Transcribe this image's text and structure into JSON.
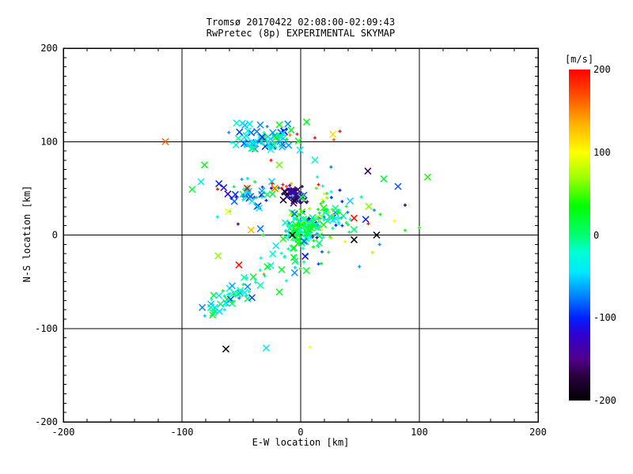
{
  "title": {
    "line1": "Tromsø 20170422 02:08:00-02:09:43",
    "line2": "RwPretec (8p) EXPERIMENTAL SKYMAP"
  },
  "colorbar": {
    "label": "[m/s]",
    "ticks": [
      200,
      100,
      0,
      -100,
      -200
    ],
    "min": -200,
    "max": 200,
    "stops": [
      [
        -200,
        "#000000"
      ],
      [
        -170,
        "#2a0040"
      ],
      [
        -150,
        "#50008c"
      ],
      [
        -120,
        "#3000d0"
      ],
      [
        -100,
        "#0020ff"
      ],
      [
        -70,
        "#0090ff"
      ],
      [
        -45,
        "#00e8ff"
      ],
      [
        -20,
        "#00ffd0"
      ],
      [
        0,
        "#00ff70"
      ],
      [
        35,
        "#00ff00"
      ],
      [
        70,
        "#a0ff00"
      ],
      [
        100,
        "#ffff00"
      ],
      [
        135,
        "#ffb000"
      ],
      [
        165,
        "#ff5800"
      ],
      [
        200,
        "#ff0000"
      ]
    ]
  },
  "chart_data": {
    "type": "scatter",
    "xlabel": "E-W location [km]",
    "ylabel": "N-S location [km]",
    "xlim": [
      -200,
      200
    ],
    "ylim": [
      -200,
      200
    ],
    "x_ticks": [
      -200,
      -100,
      0,
      100,
      200
    ],
    "y_ticks": [
      -200,
      -100,
      0,
      100,
      200
    ],
    "x_minor_step": 20,
    "y_minor_step": 10,
    "grid_lines_x": [
      -100,
      0,
      100
    ],
    "grid_lines_y": [
      -100,
      0,
      100
    ],
    "value_unit": "m/s",
    "marker_types": {
      "x": "large X marker",
      "p": "small plus marker"
    },
    "seed": 20170422,
    "clusters": [
      {
        "name": "top-band",
        "cx": -32,
        "cy": 100,
        "sx": 13,
        "sy": 6,
        "n": 65,
        "v_mean": -35,
        "v_sd": 35,
        "x_frac": 0.6
      },
      {
        "name": "upper-sparse",
        "cx": -35,
        "cy": 110,
        "sx": 20,
        "sy": 8,
        "n": 14,
        "v_mean": -45,
        "v_sd": 30,
        "x_frac": 0.8
      },
      {
        "name": "mid-left",
        "cx": -43,
        "cy": 42,
        "sx": 9,
        "sy": 9,
        "n": 38,
        "v_mean": -75,
        "v_sd": 45,
        "x_frac": 0.45
      },
      {
        "name": "dark-core",
        "cx": -6,
        "cy": 44,
        "sx": 5,
        "sy": 4,
        "n": 40,
        "v_mean": -150,
        "v_sd": 25,
        "x_frac": 0.75
      },
      {
        "name": "origin-dense",
        "cx": 2,
        "cy": 7,
        "sx": 7,
        "sy": 7,
        "n": 115,
        "v_mean": 5,
        "v_sd": 30,
        "x_frac": 0.35
      },
      {
        "name": "right-mid",
        "cx": 22,
        "cy": 22,
        "sx": 12,
        "sy": 13,
        "n": 85,
        "v_mean": -5,
        "v_sd": 65,
        "x_frac": 0.25
      },
      {
        "name": "sw-trail",
        "type": "trail",
        "from": [
          -78,
          -82
        ],
        "to": [
          -33,
          -44
        ],
        "width": 5,
        "n": 55,
        "v_mean": -25,
        "v_sd": 30,
        "x_frac": 0.5
      },
      {
        "name": "below-origin",
        "cx": -5,
        "cy": -22,
        "sx": 14,
        "sy": 12,
        "n": 28,
        "v_mean": 5,
        "v_sd": 30,
        "x_frac": 0.3
      },
      {
        "name": "sparse-field",
        "cx": -10,
        "cy": 30,
        "sx": 45,
        "sy": 35,
        "n": 40,
        "v_mean": -10,
        "v_sd": 70,
        "x_frac": 0.4
      }
    ],
    "points": [
      [
        -63,
        -122,
        -200,
        "x"
      ],
      [
        -29,
        -121,
        -45,
        "x"
      ],
      [
        8,
        -120,
        100,
        "p"
      ],
      [
        -7,
        0,
        -200,
        "x"
      ],
      [
        45,
        -5,
        -200,
        "x"
      ],
      [
        64,
        0,
        -200,
        "x"
      ],
      [
        -13,
        46,
        -200,
        "x"
      ],
      [
        -84,
        57,
        -40,
        "x"
      ],
      [
        -114,
        100,
        160,
        "x"
      ],
      [
        -81,
        75,
        30,
        "x"
      ],
      [
        107,
        62,
        40,
        "x"
      ],
      [
        82,
        52,
        -85,
        "x"
      ],
      [
        88,
        32,
        -160,
        "p"
      ],
      [
        -18,
        118,
        30,
        "x"
      ],
      [
        5,
        121,
        25,
        "x"
      ],
      [
        -43,
        119,
        -40,
        "x"
      ],
      [
        45,
        18,
        195,
        "x"
      ],
      [
        -45,
        50,
        195,
        "x"
      ],
      [
        -52,
        -32,
        195,
        "x"
      ],
      [
        -31,
        -42,
        150,
        "p"
      ],
      [
        12,
        104,
        195,
        "p"
      ],
      [
        -3,
        108,
        190,
        "p"
      ],
      [
        28,
        102,
        160,
        "p"
      ],
      [
        33,
        111,
        195,
        "p"
      ],
      [
        -70,
        49,
        195,
        "p"
      ],
      [
        -25,
        80,
        190,
        "p"
      ],
      [
        -15,
        54,
        195,
        "p"
      ],
      [
        15,
        54,
        190,
        "p"
      ],
      [
        57,
        12,
        195,
        "p"
      ],
      [
        79,
        15,
        100,
        "p"
      ],
      [
        -61,
        25,
        95,
        "x"
      ],
      [
        18,
        38,
        100,
        "p"
      ],
      [
        20,
        44,
        110,
        "p"
      ],
      [
        35,
        10,
        -95,
        "p"
      ],
      [
        100,
        8,
        40,
        "p"
      ],
      [
        67,
        22,
        30,
        "p"
      ],
      [
        88,
        5,
        35,
        "p"
      ],
      [
        15,
        -31,
        -90,
        "p"
      ],
      [
        18,
        -18,
        -85,
        "p"
      ],
      [
        -41,
        -67,
        -90,
        "x"
      ],
      [
        -22,
        50,
        160,
        "x"
      ],
      [
        -24,
        55,
        190,
        "p"
      ],
      [
        -12,
        52,
        170,
        "p"
      ],
      [
        -8,
        55,
        140,
        "p"
      ],
      [
        -16,
        50,
        200,
        "p"
      ],
      [
        -9,
        107,
        150,
        "p"
      ],
      [
        -28,
        -34,
        30,
        "x"
      ],
      [
        -16,
        -37,
        25,
        "x"
      ],
      [
        -18,
        -61,
        25,
        "x"
      ],
      [
        33,
        48,
        -110,
        "p"
      ]
    ]
  }
}
